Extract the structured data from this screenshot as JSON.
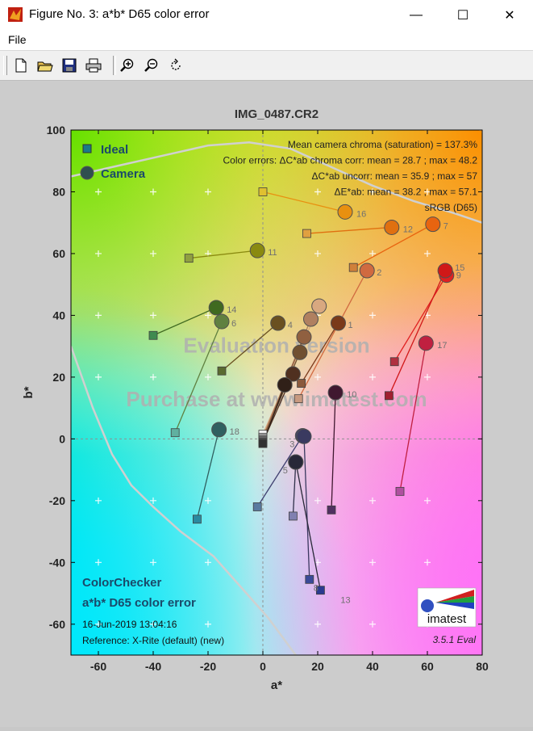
{
  "window": {
    "title": "Figure No. 3: a*b* D65 color error",
    "menu": [
      "File"
    ],
    "controls": {
      "minimize": "—",
      "maximize": "☐",
      "close": "✕"
    }
  },
  "toolbar": {
    "buttons": [
      "new-document-icon",
      "open-folder-icon",
      "save-icon",
      "print-icon",
      "zoom-in-icon",
      "zoom-out-icon",
      "rotate-icon"
    ]
  },
  "chart_data": {
    "type": "scatter",
    "title": "IMG_0487.CR2",
    "xlabel": "a*",
    "ylabel": "b*",
    "xlim": [
      -70,
      80
    ],
    "ylim": [
      -70,
      100
    ],
    "x_ticks": [
      -60,
      -40,
      -20,
      0,
      20,
      40,
      60,
      80
    ],
    "y_ticks": [
      -60,
      -40,
      -20,
      0,
      20,
      40,
      60,
      80,
      100
    ],
    "grid": "crosses",
    "legend": [
      {
        "name": "Ideal",
        "marker": "square",
        "color": "#1a7a8a"
      },
      {
        "name": "Camera",
        "marker": "circle",
        "color": "#2f4f4f"
      }
    ],
    "stats": [
      "Mean camera chroma (saturation) = 137.3%",
      "Color errors: ΔC*ab chroma corr:  mean = 28.7 ;  max = 48.2",
      "ΔC*ab uncorr:  mean = 35.9 ;  max = 57",
      "ΔE*ab:  mean = 38.2 ;  max = 57.1",
      "sRGB (D65)"
    ],
    "watermark": [
      "Evaluation version",
      "Purchase at www.imatest.com"
    ],
    "bottom_left": {
      "title1": "ColorChecker",
      "title2": "a*b* D65 color error",
      "date": "16-Jun-2019 13:04:16",
      "reference": "Reference: X-Rite (default) (new)"
    },
    "logo_text": "imatest",
    "version": "3.5.1  Eval",
    "gamut_outline": [
      [
        -70,
        85
      ],
      [
        -55,
        88
      ],
      [
        -35,
        92
      ],
      [
        -20,
        95
      ],
      [
        -5,
        96
      ],
      [
        10,
        94
      ],
      [
        25,
        88
      ],
      [
        40,
        82
      ],
      [
        55,
        77
      ],
      [
        70,
        73
      ],
      [
        80,
        70
      ]
    ],
    "gamut_lower": [
      [
        -70,
        30
      ],
      [
        -62,
        10
      ],
      [
        -55,
        -5
      ],
      [
        -48,
        -15
      ],
      [
        -40,
        -22
      ],
      [
        -30,
        -30
      ],
      [
        -18,
        -38
      ],
      [
        -8,
        -48
      ],
      [
        2,
        -58
      ],
      [
        12,
        -70
      ]
    ],
    "patches": [
      {
        "id": "1",
        "ideal": [
          14,
          18
        ],
        "camera": [
          27.5,
          37.5
        ],
        "ideal_color": "#8b5a3c",
        "camera_color": "#7a3a1a"
      },
      {
        "id": "2",
        "ideal": [
          13,
          13
        ],
        "camera": [
          38,
          54.5
        ],
        "ideal_color": "#c89a80",
        "camera_color": "#d06a40"
      },
      {
        "id": "3",
        "ideal": [
          -2,
          -22
        ],
        "camera": [
          14.5,
          1
        ],
        "ideal_color": "#5a7aa0",
        "camera_color": "#404070"
      },
      {
        "id": "4",
        "ideal": [
          -15,
          22
        ],
        "camera": [
          5.5,
          37.5
        ],
        "ideal_color": "#5a6a30",
        "camera_color": "#6a5020"
      },
      {
        "id": "5",
        "ideal": [
          11,
          -25
        ],
        "camera": [
          12,
          -7.5
        ],
        "ideal_color": "#8080b0",
        "camera_color": "#30304a"
      },
      {
        "id": "6",
        "ideal": [
          -32,
          2
        ],
        "camera": [
          -15,
          38
        ],
        "ideal_color": "#60b0a0",
        "camera_color": "#608040"
      },
      {
        "id": "7",
        "ideal": [
          33,
          55.5
        ],
        "camera": [
          62,
          69.5
        ],
        "ideal_color": "#d0803a",
        "camera_color": "#e86410"
      },
      {
        "id": "8",
        "ideal": [
          17,
          -45.5
        ],
        "camera": [
          15,
          0.8
        ],
        "ideal_color": "#3a4a98",
        "camera_color": "#3a3a60"
      },
      {
        "id": "9",
        "ideal": [
          48,
          25
        ],
        "camera": [
          67,
          53
        ],
        "ideal_color": "#b03040",
        "camera_color": "#e02020"
      },
      {
        "id": "10",
        "ideal": [
          25,
          -23
        ],
        "camera": [
          26.5,
          15
        ],
        "ideal_color": "#503060",
        "camera_color": "#401830"
      },
      {
        "id": "11",
        "ideal": [
          -27,
          58.5
        ],
        "camera": [
          -2,
          61
        ],
        "ideal_color": "#90a040",
        "camera_color": "#8a8a10"
      },
      {
        "id": "12",
        "ideal": [
          16,
          66.5
        ],
        "camera": [
          47,
          68.5
        ],
        "ideal_color": "#e0a040",
        "camera_color": "#e07010"
      },
      {
        "id": "13",
        "ideal": [
          21,
          -49
        ],
        "camera": [
          12,
          -7.5
        ],
        "ideal_color": "#2a3a90",
        "camera_color": "#282838"
      },
      {
        "id": "14",
        "ideal": [
          -40,
          33.5
        ],
        "camera": [
          -17,
          42.5
        ],
        "ideal_color": "#408a50",
        "camera_color": "#406a20"
      },
      {
        "id": "15",
        "ideal": [
          46,
          14
        ],
        "camera": [
          66.5,
          54.5
        ],
        "ideal_color": "#a02030",
        "camera_color": "#d01818"
      },
      {
        "id": "16",
        "ideal": [
          0,
          80
        ],
        "camera": [
          30,
          73.5
        ],
        "ideal_color": "#e0c030",
        "camera_color": "#e89010"
      },
      {
        "id": "17",
        "ideal": [
          50,
          -17
        ],
        "camera": [
          59.5,
          31
        ],
        "ideal_color": "#b050a0",
        "camera_color": "#c02040"
      },
      {
        "id": "18",
        "ideal": [
          -24,
          -26
        ],
        "camera": [
          -16,
          3
        ],
        "ideal_color": "#2a8aa0",
        "camera_color": "#306060"
      },
      {
        "id": "19",
        "ideal": [
          0,
          1.5
        ],
        "camera": [
          20.5,
          43
        ],
        "ideal_color": "#f0f0f0",
        "camera_color": "#d8a880"
      },
      {
        "id": "20",
        "ideal": [
          0,
          0.5
        ],
        "camera": [
          17.5,
          38.8
        ],
        "ideal_color": "#c8c8c8",
        "camera_color": "#b08060"
      },
      {
        "id": "21",
        "ideal": [
          0,
          0
        ],
        "camera": [
          15,
          33
        ],
        "ideal_color": "#a0a0a0",
        "camera_color": "#906040"
      },
      {
        "id": "22",
        "ideal": [
          0,
          -0.5
        ],
        "camera": [
          13.5,
          28
        ],
        "ideal_color": "#787878",
        "camera_color": "#705030"
      },
      {
        "id": "23",
        "ideal": [
          0,
          -1
        ],
        "camera": [
          11,
          21
        ],
        "ideal_color": "#505050",
        "camera_color": "#503020"
      },
      {
        "id": "24",
        "ideal": [
          0,
          -1.5
        ],
        "camera": [
          8,
          17.5
        ],
        "ideal_color": "#303030",
        "camera_color": "#302018"
      }
    ]
  }
}
